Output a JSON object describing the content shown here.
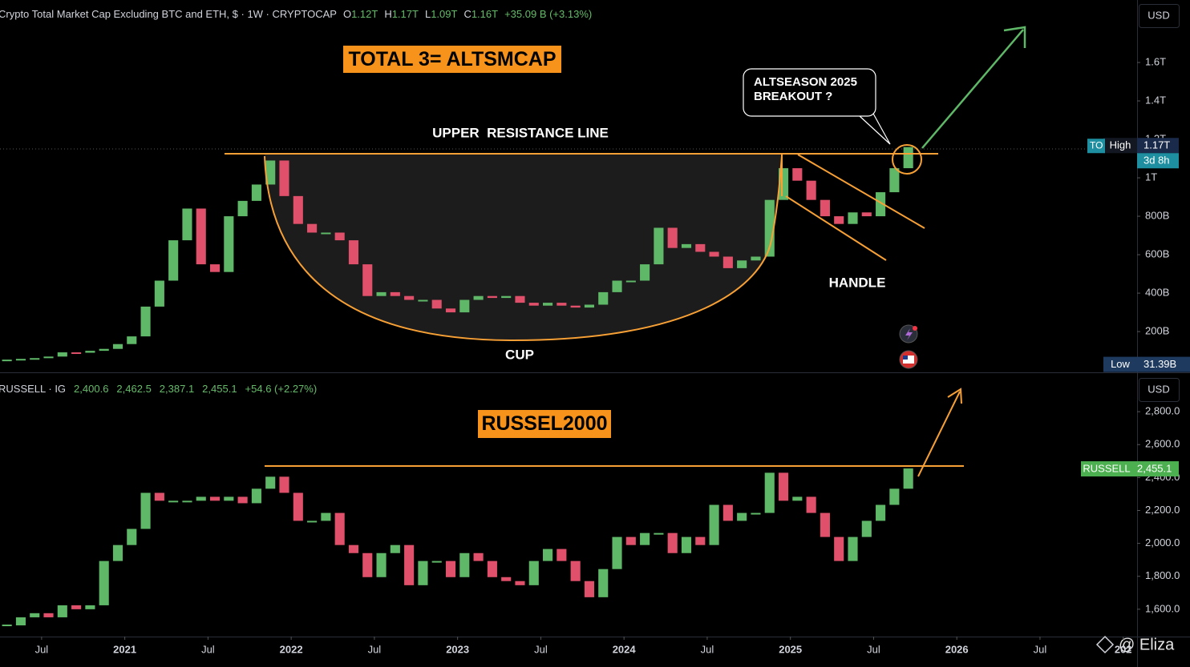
{
  "chart_data": [
    {
      "type": "candlestick",
      "title": "Crypto Total Market Cap Excluding BTC and ETH, $ · 1W · CRYPTOCAP",
      "ohlc": [
        {
          "key": "O",
          "value": "1.12T"
        },
        {
          "key": "H",
          "value": "1.17T"
        },
        {
          "key": "L",
          "value": "1.09T"
        },
        {
          "key": "C",
          "value": "1.16T"
        }
      ],
      "change": "+35.09 B (+3.13%)",
      "label": "TOTAL 3= ALTSMCAP",
      "annotations": [
        "UPPER  RESISTANCE LINE",
        "HANDLE",
        "CUP"
      ],
      "callout": [
        "ALTSEASON 2025",
        "BREAKOUT ?"
      ],
      "currency": "USD",
      "up_color": "#5fb868",
      "down_color": "#e0506a",
      "x": [
        "2020-04",
        "2020-05",
        "2020-06",
        "2020-07",
        "2020-08",
        "2020-09",
        "2020-10",
        "2020-11",
        "2020-12",
        "2021-01",
        "2021-02",
        "2021-03",
        "2021-04",
        "2021-05",
        "2021-06",
        "2021-07",
        "2021-08",
        "2021-09",
        "2021-10",
        "2021-11",
        "2021-12",
        "2022-01",
        "2022-02",
        "2022-03",
        "2022-04",
        "2022-05",
        "2022-06",
        "2022-07",
        "2022-08",
        "2022-09",
        "2022-10",
        "2022-11",
        "2022-12",
        "2023-01",
        "2023-02",
        "2023-03",
        "2023-04",
        "2023-05",
        "2023-06",
        "2023-07",
        "2023-08",
        "2023-09",
        "2023-10",
        "2023-11",
        "2023-12",
        "2024-01",
        "2024-02",
        "2024-03",
        "2024-04",
        "2024-05",
        "2024-06",
        "2024-07",
        "2024-08",
        "2024-09",
        "2024-10",
        "2024-11",
        "2024-12",
        "2025-01",
        "2025-02",
        "2025-03",
        "2025-04",
        "2025-05",
        "2025-06",
        "2025-07",
        "2025-08",
        "2025-09"
      ],
      "series": [
        {
          "name": "TO",
          "values": [
            50,
            58,
            62,
            70,
            92,
            90,
            100,
            110,
            135,
            175,
            330,
            465,
            675,
            840,
            550,
            510,
            800,
            880,
            965,
            1090,
            905,
            760,
            715,
            715,
            675,
            550,
            385,
            405,
            385,
            365,
            365,
            320,
            300,
            365,
            385,
            375,
            385,
            350,
            335,
            350,
            335,
            325,
            340,
            405,
            465,
            465,
            550,
            740,
            635,
            655,
            615,
            590,
            530,
            570,
            590,
            885,
            1050,
            985,
            885,
            800,
            760,
            820,
            800,
            925,
            1050,
            1160
          ]
        }
      ],
      "price_labels": [
        {
          "name": "High",
          "value": 1170,
          "label": "1.17T",
          "countdown": "3d 8h"
        },
        {
          "name": "Low",
          "value": 31.39,
          "label": "31.39B"
        }
      ],
      "xlim": [
        "2020-04",
        "2027-02"
      ],
      "ylim": [
        -12,
        1925
      ],
      "yticks": [
        {
          "value": 200,
          "label": "200B"
        },
        {
          "value": 400,
          "label": "400B"
        },
        {
          "value": 600,
          "label": "600B"
        },
        {
          "value": 800,
          "label": "800B"
        },
        {
          "value": 1000,
          "label": "1T"
        },
        {
          "value": 1200,
          "label": "1.2T"
        },
        {
          "value": 1400,
          "label": "1.4T"
        },
        {
          "value": 1600,
          "label": "1.6T"
        }
      ]
    },
    {
      "type": "candlestick",
      "title": "RUSSELL · IG",
      "ohlc": [
        {
          "value": "2,400.6"
        },
        {
          "value": "2,462.5"
        },
        {
          "value": "2,387.1"
        },
        {
          "value": "2,455.1"
        }
      ],
      "change": "+54.6 (+2.27%)",
      "label": "RUSSEL2000",
      "currency": "USD",
      "up_color": "#5fb868",
      "down_color": "#e0506a",
      "x": [
        "2020-04",
        "2020-05",
        "2020-06",
        "2020-07",
        "2020-08",
        "2020-09",
        "2020-10",
        "2020-11",
        "2020-12",
        "2021-01",
        "2021-02",
        "2021-03",
        "2021-04",
        "2021-05",
        "2021-06",
        "2021-07",
        "2021-08",
        "2021-09",
        "2021-10",
        "2021-11",
        "2021-12",
        "2022-01",
        "2022-02",
        "2022-03",
        "2022-04",
        "2022-05",
        "2022-06",
        "2022-07",
        "2022-08",
        "2022-09",
        "2022-10",
        "2022-11",
        "2022-12",
        "2023-01",
        "2023-02",
        "2023-03",
        "2023-04",
        "2023-05",
        "2023-06",
        "2023-07",
        "2023-08",
        "2023-09",
        "2023-10",
        "2023-11",
        "2023-12",
        "2024-01",
        "2024-02",
        "2024-03",
        "2024-04",
        "2024-05",
        "2024-06",
        "2024-07",
        "2024-08",
        "2024-09",
        "2024-10",
        "2024-11",
        "2024-12",
        "2025-01",
        "2025-02",
        "2025-03",
        "2025-04",
        "2025-05",
        "2025-06",
        "2025-07",
        "2025-08",
        "2025-09"
      ],
      "series": [
        {
          "name": "RUSSELL",
          "values": [
            1502,
            1551,
            1576,
            1551,
            1624,
            1600,
            1624,
            1893,
            1990,
            2088,
            2307,
            2259,
            2259,
            2259,
            2283,
            2259,
            2283,
            2244,
            2332,
            2405,
            2307,
            2137,
            2137,
            2185,
            1990,
            1941,
            1795,
            1941,
            1990,
            1746,
            1893,
            1893,
            1795,
            1941,
            1893,
            1795,
            1771,
            1746,
            1893,
            1966,
            1893,
            1771,
            1673,
            1844,
            2039,
            1990,
            2063,
            2063,
            1941,
            2039,
            1990,
            2234,
            2137,
            2185,
            2185,
            2429,
            2259,
            2283,
            2185,
            2039,
            1893,
            2039,
            2137,
            2234,
            2332,
            2455.1
          ]
        }
      ],
      "price_labels": [
        {
          "name": "RUSSELL",
          "value": 2455.1,
          "label": "2,455.1"
        }
      ],
      "xlim": [
        "2020-04",
        "2027-02"
      ],
      "ylim": [
        1434,
        3034
      ],
      "yticks": [
        {
          "value": 1600,
          "label": "1,600.0"
        },
        {
          "value": 1800,
          "label": "1,800.0"
        },
        {
          "value": 2000,
          "label": "2,000.0"
        },
        {
          "value": 2200,
          "label": "2,200.0"
        },
        {
          "value": 2400,
          "label": "2,400.0"
        },
        {
          "value": 2600,
          "label": "2,600.0"
        },
        {
          "value": 2800,
          "label": "2,800.0"
        }
      ],
      "xticks": [
        {
          "value": "2020-07",
          "label": "Jul"
        },
        {
          "value": "2021-01",
          "label": "2021"
        },
        {
          "value": "2021-07",
          "label": "Jul"
        },
        {
          "value": "2022-01",
          "label": "2022"
        },
        {
          "value": "2022-07",
          "label": "Jul"
        },
        {
          "value": "2023-01",
          "label": "2023"
        },
        {
          "value": "2023-07",
          "label": "Jul"
        },
        {
          "value": "2024-01",
          "label": "2024"
        },
        {
          "value": "2024-07",
          "label": "Jul"
        },
        {
          "value": "2025-01",
          "label": "2025"
        },
        {
          "value": "2025-07",
          "label": "Jul"
        },
        {
          "value": "2026-01",
          "label": "2026"
        },
        {
          "value": "2026-07",
          "label": "Jul"
        },
        {
          "value": "2027-01",
          "label": "202"
        }
      ]
    }
  ],
  "watermark": "@ Eliza"
}
